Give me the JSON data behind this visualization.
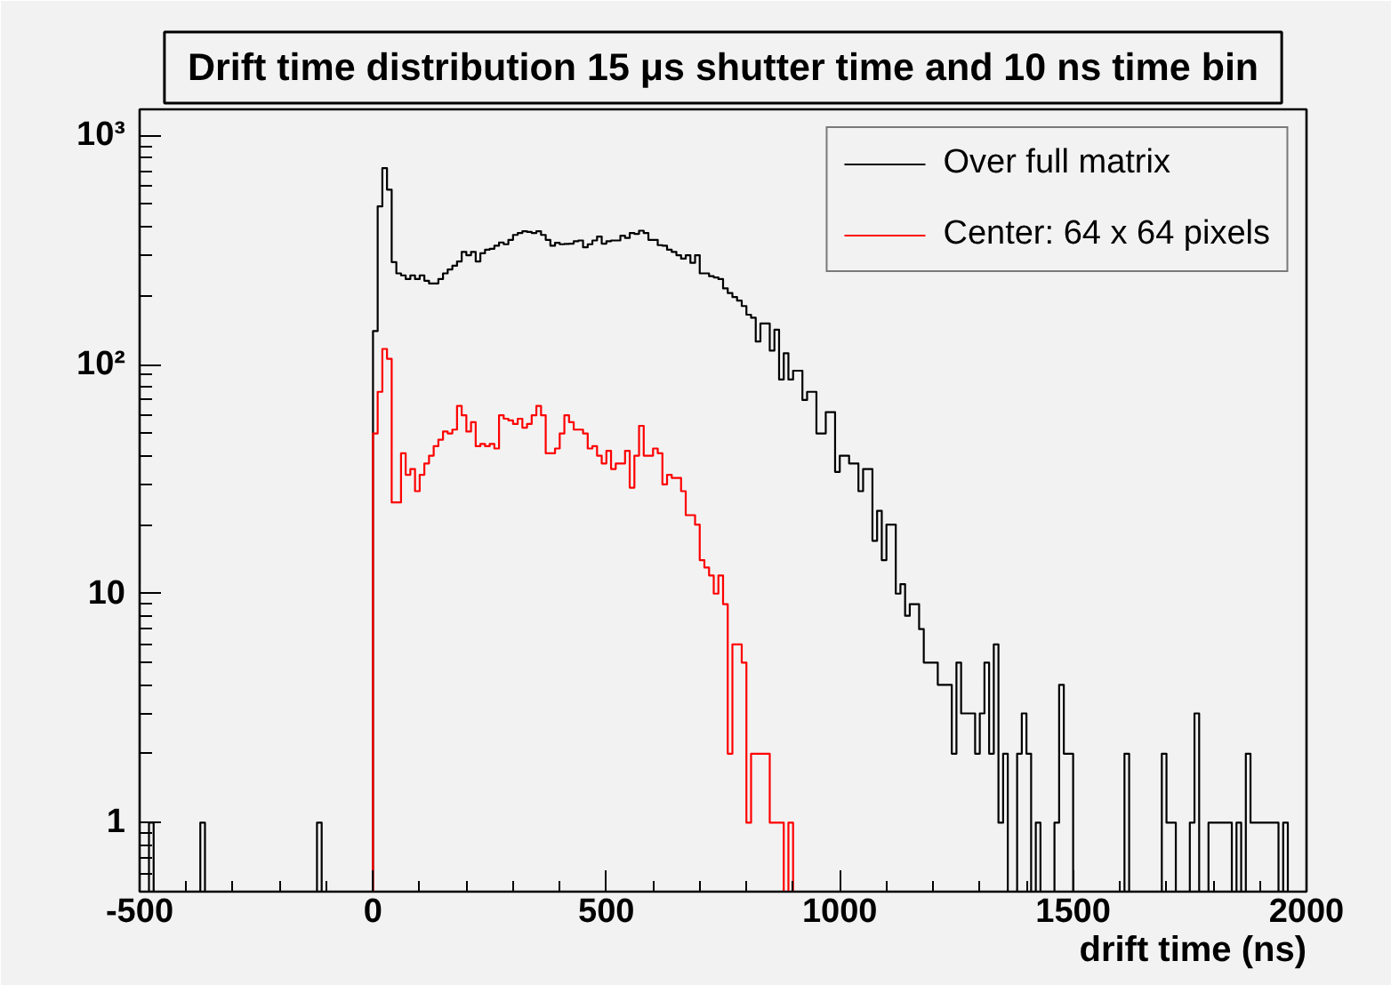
{
  "chart_data": {
    "type": "histogram",
    "title": "Drift time distribution 15 μs shutter time and 10 ns time bin",
    "xlabel": "drift time (ns)",
    "log": "y",
    "legend": "top right",
    "xlim": [
      -500,
      2000
    ],
    "ylim": [
      0.5,
      1300
    ],
    "xticks": [
      -500,
      {
        "value": -400,
        "label": null
      },
      {
        "value": -300,
        "label": null
      },
      {
        "value": -200,
        "label": null
      },
      {
        "value": -100,
        "label": null
      },
      0,
      {
        "value": 100,
        "label": null
      },
      {
        "value": 200,
        "label": null
      },
      {
        "value": 300,
        "label": null
      },
      {
        "value": 400,
        "label": null
      },
      500,
      {
        "value": 600,
        "label": null
      },
      {
        "value": 700,
        "label": null
      },
      {
        "value": 800,
        "label": null
      },
      {
        "value": 900,
        "label": null
      },
      1000,
      {
        "value": 1100,
        "label": null
      },
      {
        "value": 1200,
        "label": null
      },
      {
        "value": 1300,
        "label": null
      },
      {
        "value": 1400,
        "label": null
      },
      1500,
      {
        "value": 1600,
        "label": null
      },
      {
        "value": 1700,
        "label": null
      },
      {
        "value": 1800,
        "label": null
      },
      {
        "value": 1900,
        "label": null
      },
      2000
    ],
    "yticks": [
      {
        "value": 0.6,
        "label": null
      },
      {
        "value": 0.7,
        "label": null
      },
      {
        "value": 0.8,
        "label": null
      },
      {
        "value": 0.9,
        "label": null
      },
      1,
      {
        "value": 2,
        "label": null
      },
      {
        "value": 3,
        "label": null
      },
      {
        "value": 4,
        "label": null
      },
      {
        "value": 5,
        "label": null
      },
      {
        "value": 6,
        "label": null
      },
      {
        "value": 7,
        "label": null
      },
      {
        "value": 8,
        "label": null
      },
      {
        "value": 9,
        "label": null
      },
      10,
      {
        "value": 20,
        "label": null
      },
      {
        "value": 30,
        "label": null
      },
      {
        "value": 40,
        "label": null
      },
      {
        "value": 50,
        "label": null
      },
      {
        "value": 60,
        "label": null
      },
      {
        "value": 70,
        "label": null
      },
      {
        "value": 80,
        "label": null
      },
      {
        "value": 90,
        "label": null
      },
      {
        "value": 100,
        "label": "10²"
      },
      {
        "value": 200,
        "label": null
      },
      {
        "value": 300,
        "label": null
      },
      {
        "value": 400,
        "label": null
      },
      {
        "value": 500,
        "label": null
      },
      {
        "value": 600,
        "label": null
      },
      {
        "value": 700,
        "label": null
      },
      {
        "value": 800,
        "label": null
      },
      {
        "value": 900,
        "label": null
      },
      {
        "value": 1000,
        "label": "10³"
      }
    ],
    "bins": [
      -500,
      -490,
      -480,
      -470,
      -460,
      -450,
      -440,
      -430,
      -420,
      -410,
      -400,
      -390,
      -380,
      -370,
      -360,
      -350,
      -340,
      -330,
      -320,
      -310,
      -300,
      -290,
      -280,
      -270,
      -260,
      -250,
      -240,
      -230,
      -220,
      -210,
      -200,
      -190,
      -180,
      -170,
      -160,
      -150,
      -140,
      -130,
      -120,
      -110,
      -100,
      -90,
      -80,
      -70,
      -60,
      -50,
      -40,
      -30,
      -20,
      -10,
      0,
      10,
      20,
      30,
      40,
      50,
      60,
      70,
      80,
      90,
      100,
      110,
      120,
      130,
      140,
      150,
      160,
      170,
      180,
      190,
      200,
      210,
      220,
      230,
      240,
      250,
      260,
      270,
      280,
      290,
      300,
      310,
      320,
      330,
      340,
      350,
      360,
      370,
      380,
      390,
      400,
      410,
      420,
      430,
      440,
      450,
      460,
      470,
      480,
      490,
      500,
      510,
      520,
      530,
      540,
      550,
      560,
      570,
      580,
      590,
      600,
      610,
      620,
      630,
      640,
      650,
      660,
      670,
      680,
      690,
      700,
      710,
      720,
      730,
      740,
      750,
      760,
      770,
      780,
      790,
      800,
      810,
      820,
      830,
      840,
      850,
      860,
      870,
      880,
      890,
      900,
      910,
      920,
      930,
      940,
      950,
      960,
      970,
      980,
      990,
      1000,
      1010,
      1020,
      1030,
      1040,
      1050,
      1060,
      1070,
      1080,
      1090,
      1100,
      1110,
      1120,
      1130,
      1140,
      1150,
      1160,
      1170,
      1180,
      1190,
      1200,
      1210,
      1220,
      1230,
      1240,
      1250,
      1260,
      1270,
      1280,
      1290,
      1300,
      1310,
      1320,
      1330,
      1340,
      1350,
      1360,
      1370,
      1380,
      1390,
      1400,
      1410,
      1420,
      1430,
      1440,
      1450,
      1460,
      1470,
      1480,
      1490,
      1500,
      1510,
      1520,
      1530,
      1540,
      1550,
      1560,
      1570,
      1580,
      1590,
      1600,
      1610,
      1620,
      1630,
      1640,
      1650,
      1660,
      1670,
      1680,
      1690,
      1700,
      1710,
      1720,
      1730,
      1740,
      1750,
      1760,
      1770,
      1780,
      1790,
      1800,
      1810,
      1820,
      1830,
      1840,
      1850,
      1860,
      1870,
      1880,
      1890,
      1900,
      1910,
      1920,
      1930,
      1940,
      1950,
      1960,
      1970,
      1980,
      1990,
      2000
    ],
    "series": [
      {
        "name": "Over full matrix",
        "color": "#000000",
        "values": [
          null,
          null,
          1,
          null,
          null,
          null,
          null,
          null,
          null,
          null,
          null,
          null,
          null,
          1,
          null,
          null,
          null,
          null,
          null,
          null,
          null,
          null,
          null,
          null,
          null,
          null,
          null,
          null,
          null,
          null,
          null,
          null,
          null,
          null,
          null,
          null,
          null,
          null,
          1,
          null,
          null,
          null,
          null,
          null,
          null,
          null,
          null,
          null,
          null,
          null,
          140,
          490,
          720,
          580,
          280,
          250,
          245,
          236,
          245,
          236,
          245,
          232,
          226,
          226,
          236,
          250,
          260,
          270,
          282,
          310,
          300,
          310,
          282,
          306,
          317,
          320,
          330,
          341,
          335,
          350,
          368,
          375,
          382,
          379,
          375,
          382,
          368,
          350,
          330,
          340,
          335,
          336,
          337,
          345,
          348,
          325,
          335,
          348,
          362,
          337,
          345,
          348,
          348,
          365,
          357,
          375,
          372,
          384,
          375,
          350,
          350,
          332,
          330,
          317,
          310,
          300,
          290,
          300,
          278,
          300,
          250,
          250,
          243,
          240,
          236,
          215,
          205,
          197,
          190,
          180,
          165,
          160,
          126,
          151,
          151,
          115,
          142,
          86,
          112,
          86,
          94,
          94,
          70,
          76,
          76,
          50,
          50,
          62,
          62,
          34,
          40,
          40,
          37,
          37,
          28,
          35,
          35,
          17,
          23,
          14,
          20,
          20,
          10,
          11,
          8,
          9,
          9,
          7,
          5,
          5,
          5,
          4,
          4,
          4,
          2,
          5,
          3,
          3,
          3,
          2,
          3,
          5,
          2,
          6,
          1,
          2,
          null,
          null,
          2,
          3,
          2,
          null,
          1,
          null,
          null,
          null,
          1,
          4,
          2,
          2,
          null,
          null,
          null,
          null,
          null,
          null,
          null,
          null,
          null,
          null,
          null,
          2,
          null,
          null,
          null,
          null,
          null,
          null,
          null,
          2,
          1,
          1,
          null,
          null,
          null,
          1,
          3,
          null,
          null,
          1,
          1,
          1,
          1,
          1,
          null,
          1,
          null,
          2,
          1,
          1,
          1,
          1,
          1,
          1,
          null,
          1,
          null,
          null,
          null,
          null
        ]
      },
      {
        "name": "Center: 64 x 64 pixels",
        "color": "#ff0000",
        "values": [
          null,
          null,
          null,
          null,
          null,
          null,
          null,
          null,
          null,
          null,
          null,
          null,
          null,
          null,
          null,
          null,
          null,
          null,
          null,
          null,
          null,
          null,
          null,
          null,
          null,
          null,
          null,
          null,
          null,
          null,
          null,
          null,
          null,
          null,
          null,
          null,
          null,
          null,
          null,
          null,
          null,
          null,
          null,
          null,
          null,
          null,
          null,
          null,
          null,
          null,
          50,
          76,
          117,
          106,
          25,
          25,
          41,
          33,
          35,
          28,
          33,
          37,
          40,
          44,
          47,
          51,
          50,
          52,
          66,
          60,
          51,
          56,
          44,
          45,
          44,
          45,
          43,
          60,
          58,
          57,
          55,
          58,
          53,
          55,
          60,
          66,
          60,
          41,
          41,
          43,
          50,
          60,
          56,
          52,
          52,
          50,
          43,
          44,
          40,
          37,
          42,
          35,
          37,
          37,
          42,
          29,
          40,
          54,
          40,
          40,
          43,
          41,
          30,
          33,
          32,
          32,
          28,
          22,
          22,
          20,
          14,
          13,
          12,
          10,
          12,
          9,
          2,
          6,
          6,
          5,
          1,
          2,
          2,
          2,
          2,
          1,
          1,
          1,
          null,
          1,
          null,
          null,
          null,
          null,
          null,
          null,
          null,
          null,
          null,
          null,
          null,
          null,
          null,
          null,
          null,
          null,
          null,
          null,
          null,
          null,
          null,
          null,
          null,
          null,
          null,
          null,
          null,
          null,
          null,
          null,
          null,
          null,
          null,
          null,
          null,
          null,
          null,
          null,
          null,
          null,
          null,
          null,
          null,
          null,
          null,
          null,
          null,
          null,
          null,
          null,
          null,
          null,
          null,
          null,
          null,
          null,
          null,
          null,
          null,
          null,
          null,
          null,
          null,
          null,
          null,
          null,
          null,
          null,
          null,
          null,
          null,
          null,
          null,
          null,
          null,
          null,
          null,
          null,
          null,
          null,
          null,
          null,
          null,
          null,
          null,
          null,
          null,
          null,
          null,
          null,
          null,
          null,
          null,
          null,
          null,
          null,
          null,
          null,
          null,
          null,
          null,
          null,
          null,
          null,
          null,
          null,
          null,
          null,
          null,
          null
        ]
      }
    ]
  }
}
